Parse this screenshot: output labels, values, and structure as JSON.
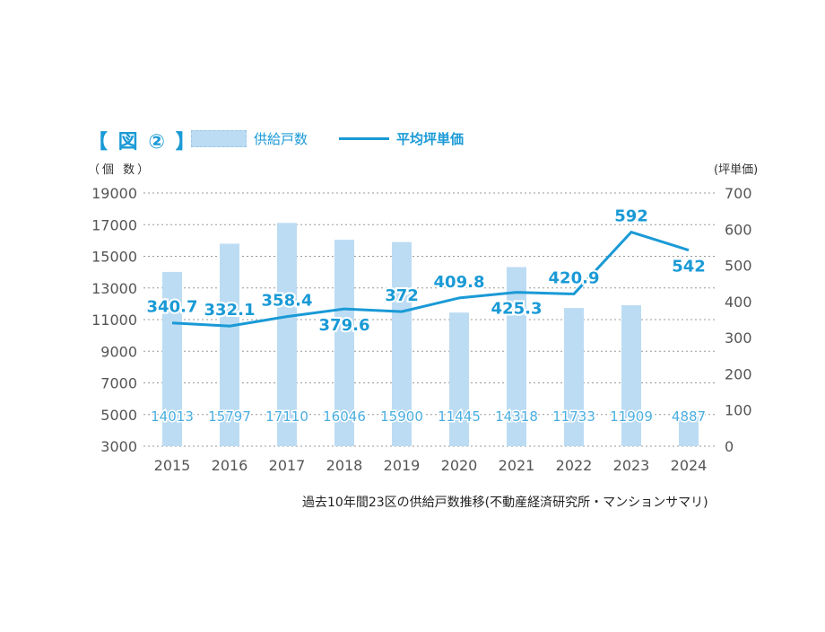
{
  "header": {
    "figure_title": "【 図 ② 】",
    "legend_bars": "供給戸数",
    "legend_line": "平均坪単価",
    "left_unit": "（個 数）",
    "right_unit": "(坪単価)"
  },
  "caption": "過去10年間23区の供給戸数推移(不動産経済研究所・マンションサマリ)",
  "colors": {
    "bar": "#bcdcf3",
    "bar_label": "#4aaee0",
    "line": "#1a9ad6",
    "grid": "#999999",
    "axis_text": "#555555"
  },
  "chart_data": {
    "type": "bar+line",
    "categories": [
      "2015",
      "2016",
      "2017",
      "2018",
      "2019",
      "2020",
      "2021",
      "2022",
      "2023",
      "2024"
    ],
    "series": [
      {
        "name": "供給戸数",
        "axis": "left",
        "type": "bar",
        "values": [
          14013,
          15797,
          17110,
          16046,
          15900,
          11445,
          14318,
          11733,
          11909,
          4887
        ]
      },
      {
        "name": "平均坪単価",
        "axis": "right",
        "type": "line",
        "values": [
          340.7,
          332.1,
          358.4,
          379.6,
          372,
          409.8,
          425.3,
          420.9,
          592,
          542
        ]
      }
    ],
    "left_axis": {
      "min": 3000,
      "max": 19000,
      "ticks": [
        3000,
        5000,
        7000,
        9000,
        11000,
        13000,
        15000,
        17000,
        19000
      ]
    },
    "right_axis": {
      "min": 0,
      "max": 700,
      "ticks": [
        0,
        100,
        200,
        300,
        400,
        500,
        600,
        700
      ]
    },
    "line_label_positions": [
      "above",
      "above",
      "above",
      "below",
      "above",
      "above",
      "below",
      "above",
      "above",
      "below"
    ]
  }
}
